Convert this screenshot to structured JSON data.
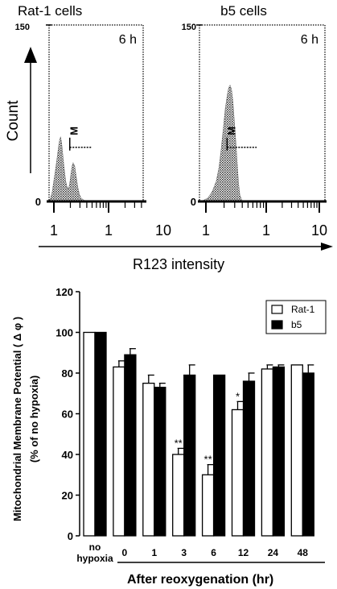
{
  "chart_data": [
    {
      "type": "area",
      "title": "Rat-1 cells",
      "annotation": "6 h",
      "marker_label": "M",
      "xlabel": "R123 intensity",
      "ylabel": "Count",
      "x_scale": "log",
      "xlim": [
        1,
        10
      ],
      "ylim": [
        0,
        150
      ],
      "x_ticks": [
        "1",
        "1",
        "10"
      ],
      "y_ticks": [
        "0",
        "150"
      ],
      "x": [
        1.0,
        1.15,
        1.3,
        1.45,
        1.6,
        1.75,
        1.9,
        2.0,
        2.1,
        2.2,
        2.3,
        2.4,
        2.5,
        2.6,
        2.7,
        2.8,
        2.9,
        3.0,
        3.1,
        3.2,
        3.3,
        3.45,
        3.6,
        3.75,
        3.9,
        4.05,
        4.2,
        4.35,
        4.5,
        4.7,
        4.9,
        5.1
      ],
      "y": [
        0,
        3,
        8,
        17,
        26,
        36,
        46,
        52,
        55,
        50,
        41,
        32,
        24,
        17,
        13,
        11,
        12,
        17,
        24,
        30,
        33,
        30,
        21,
        12,
        6,
        3,
        2,
        1,
        0,
        0,
        0,
        0
      ],
      "marker": {
        "x_start": 2.98,
        "x_end": 5.1,
        "y": 46
      }
    },
    {
      "type": "area",
      "title": "b5 cells",
      "annotation": "6 h",
      "marker_label": "M",
      "xlabel": "R123 intensity",
      "ylabel": "Count",
      "x_scale": "log",
      "xlim": [
        1,
        10
      ],
      "ylim": [
        0,
        150
      ],
      "x_ticks": [
        "1",
        "1",
        "10"
      ],
      "y_ticks": [
        "0",
        "150"
      ],
      "x": [
        1.0,
        1.3,
        1.6,
        1.9,
        2.2,
        2.4,
        2.55,
        2.7,
        2.85,
        3.0,
        3.1,
        3.2,
        3.3,
        3.4,
        3.5,
        3.6,
        3.7,
        3.8,
        3.9,
        4.05,
        4.2,
        4.4,
        4.6,
        4.8,
        5.1
      ],
      "y": [
        0,
        1,
        3,
        8,
        17,
        29,
        44,
        61,
        79,
        91,
        97,
        99,
        95,
        85,
        69,
        52,
        34,
        16,
        5,
        1,
        0,
        0,
        0,
        0,
        0
      ],
      "marker": {
        "x_start": 2.98,
        "x_end": 5.1,
        "y": 46
      }
    },
    {
      "type": "bar",
      "ylabel": "Mitochondrial Membrane Potential ( Δ φ )",
      "ylabel2": "(% of  no hypoxia)",
      "xlabel": "After  reoxygenation  (hr)",
      "categories": [
        "no hypoxia",
        "0",
        "1",
        "3",
        "6",
        "12",
        "24",
        "48"
      ],
      "ylim": [
        0,
        120
      ],
      "y_ticks": [
        "0",
        "20",
        "40",
        "60",
        "80",
        "100",
        "120"
      ],
      "legend_position": "top-right",
      "series": [
        {
          "name": "Rat-1",
          "color": "#ffffff",
          "values": [
            100,
            83,
            75,
            40,
            30,
            62,
            82,
            84
          ],
          "errors": [
            0,
            3,
            4,
            3,
            5,
            4,
            2,
            0
          ]
        },
        {
          "name": "b5",
          "color": "#000000",
          "values": [
            100,
            89,
            73,
            79,
            79,
            76,
            83,
            80
          ],
          "errors": [
            0,
            3,
            2,
            5,
            0,
            4,
            1,
            4
          ]
        }
      ],
      "significance": [
        "",
        "",
        "",
        "**",
        "**",
        "*",
        "",
        ""
      ],
      "category_lines": [
        [
          "no",
          "hypoxia"
        ],
        [
          "0"
        ],
        [
          "1"
        ],
        [
          "3"
        ],
        [
          "6"
        ],
        [
          "12"
        ],
        [
          "24"
        ],
        [
          "48"
        ]
      ]
    }
  ]
}
